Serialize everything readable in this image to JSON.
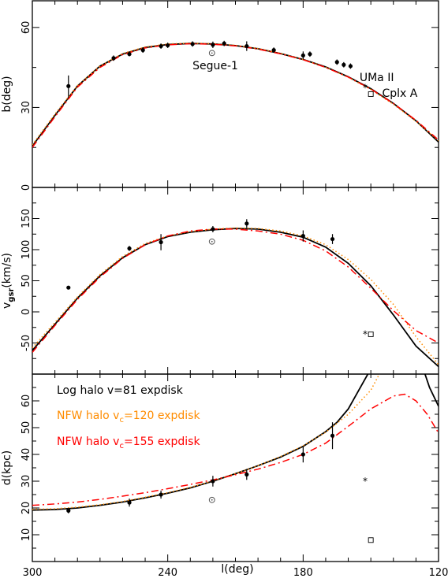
{
  "chart_data": {
    "type": "line",
    "xlabel": "l(deg)",
    "xlim": [
      300,
      120
    ],
    "xticks": [
      300,
      240,
      180,
      120
    ],
    "panels": [
      {
        "id": "b",
        "ylabel": "b(deg)",
        "ylim": [
          0,
          70
        ],
        "yticks": [
          0,
          30,
          60
        ],
        "data_points": [
          {
            "l": 284.0,
            "v": 38.0,
            "err": 4.0
          },
          {
            "l": 264.0,
            "v": 48.5,
            "err": 1.0
          },
          {
            "l": 257.0,
            "v": 50.0,
            "err": 0.8
          },
          {
            "l": 251.0,
            "v": 51.5,
            "err": 1.0
          },
          {
            "l": 243.0,
            "v": 53.0,
            "err": 1.0
          },
          {
            "l": 240.0,
            "v": 53.3,
            "err": 1.0
          },
          {
            "l": 229.0,
            "v": 53.8,
            "err": 1.0
          },
          {
            "l": 220.0,
            "v": 53.5,
            "err": 1.2
          },
          {
            "l": 215.0,
            "v": 54.0,
            "err": 1.0
          },
          {
            "l": 205.0,
            "v": 53.0,
            "err": 1.8
          },
          {
            "l": 193.0,
            "v": 51.5,
            "err": 1.0
          },
          {
            "l": 180.0,
            "v": 49.5,
            "err": 1.5
          },
          {
            "l": 177.0,
            "v": 50.0,
            "err": 1.0
          },
          {
            "l": 165.0,
            "v": 47.0,
            "err": 1.0
          },
          {
            "l": 162.0,
            "v": 46.0,
            "err": 1.0
          },
          {
            "l": 159.0,
            "v": 45.5,
            "err": 1.0
          }
        ],
        "markers": [
          {
            "name": "Segue-1",
            "symbol": "dot-circle",
            "l": 220.4,
            "v": 50.4
          },
          {
            "name": "UMa II",
            "symbol": "asterisk",
            "l": 152.5,
            "v": 37.4
          },
          {
            "name": "Cplx A",
            "symbol": "square",
            "l": 150.0,
            "v": 35.0
          }
        ],
        "annotations": [
          {
            "text": "Segue-1",
            "l": 229.0,
            "v": 44.3
          },
          {
            "text": "UMa II",
            "l": 155.0,
            "v": 39.8
          },
          {
            "text": "Cplx A",
            "l": 145.0,
            "v": 34.0
          }
        ]
      },
      {
        "id": "vgsr",
        "ylabel_main": "v",
        "ylabel_sub": "gsr",
        "ylabel_unit": "(km/s)",
        "ylim": [
          -100,
          200
        ],
        "yticks": [
          -50,
          0,
          50,
          100,
          150
        ],
        "data_points": [
          {
            "l": 284.0,
            "v": 39.0,
            "err": 0
          },
          {
            "l": 257.0,
            "v": 102.0,
            "err": 4.0
          },
          {
            "l": 243.0,
            "v": 112.0,
            "err": 13.0
          },
          {
            "l": 220.0,
            "v": 133.0,
            "err": 5.0
          },
          {
            "l": 205.0,
            "v": 142.0,
            "err": 7.0
          },
          {
            "l": 180.0,
            "v": 122.0,
            "err": 9.0
          },
          {
            "l": 167.0,
            "v": 117.0,
            "err": 8.0
          }
        ],
        "markers": [
          {
            "name": "Segue-1",
            "symbol": "dot-circle",
            "l": 220.4,
            "v": 113.0
          },
          {
            "name": "UMa II",
            "symbol": "asterisk",
            "l": 152.5,
            "v": -36.0
          },
          {
            "name": "Cplx A",
            "symbol": "square",
            "l": 150.0,
            "v": -36.0
          }
        ]
      },
      {
        "id": "d",
        "ylabel": "d(kpc)",
        "ylim": [
          0,
          70
        ],
        "yticks": [
          10,
          20,
          30,
          40,
          50,
          60
        ],
        "data_points": [
          {
            "l": 284.0,
            "v": 19.0,
            "err": 1.0
          },
          {
            "l": 257.0,
            "v": 22.0,
            "err": 1.5
          },
          {
            "l": 243.0,
            "v": 25.0,
            "err": 1.5
          },
          {
            "l": 220.0,
            "v": 30.0,
            "err": 2.0
          },
          {
            "l": 205.0,
            "v": 32.5,
            "err": 2.0
          },
          {
            "l": 180.0,
            "v": 40.0,
            "err": 3.0
          },
          {
            "l": 167.0,
            "v": 47.0,
            "err": 5.0
          }
        ],
        "markers": [
          {
            "name": "Segue-1",
            "symbol": "dot-circle",
            "l": 220.4,
            "v": 23.0
          },
          {
            "name": "UMa II",
            "symbol": "asterisk",
            "l": 152.5,
            "v": 30.0
          },
          {
            "name": "Cplx A",
            "symbol": "square",
            "l": 150.0,
            "v": 8.0
          }
        ]
      }
    ],
    "series": [
      {
        "name": "Log halo v=81 expdisk",
        "legend_main": "Log halo v=81 expdisk",
        "legend_sub": "",
        "legend_post": "",
        "color": "#000000",
        "dash": "solid",
        "curves": {
          "b": [
            [
              300,
              15.5
            ],
            [
              290,
              27
            ],
            [
              280,
              38
            ],
            [
              270,
              45.5
            ],
            [
              260,
              50
            ],
            [
              250,
              52.5
            ],
            [
              240,
              53.6
            ],
            [
              230,
              54
            ],
            [
              220,
              53.8
            ],
            [
              210,
              53.2
            ],
            [
              200,
              52
            ],
            [
              190,
              50.2
            ],
            [
              180,
              48
            ],
            [
              170,
              45.2
            ],
            [
              160,
              41.5
            ],
            [
              150,
              37
            ],
            [
              140,
              31.5
            ],
            [
              130,
              25
            ],
            [
              120,
              17
            ]
          ],
          "vgsr": [
            [
              300,
              -62
            ],
            [
              290,
              -20
            ],
            [
              280,
              22
            ],
            [
              270,
              58
            ],
            [
              260,
              87
            ],
            [
              250,
              108
            ],
            [
              240,
              121
            ],
            [
              230,
              128
            ],
            [
              220,
              132
            ],
            [
              210,
              134
            ],
            [
              200,
              133
            ],
            [
              190,
              128
            ],
            [
              180,
              120
            ],
            [
              170,
              104
            ],
            [
              160,
              78
            ],
            [
              150,
              42
            ],
            [
              140,
              -5
            ],
            [
              130,
              -55
            ],
            [
              120,
              -88
            ]
          ],
          "d": [
            [
              300,
              19.2
            ],
            [
              290,
              19.4
            ],
            [
              280,
              20
            ],
            [
              270,
              21
            ],
            [
              260,
              22.2
            ],
            [
              250,
              23.8
            ],
            [
              240,
              25.5
            ],
            [
              230,
              27.5
            ],
            [
              220,
              30
            ],
            [
              210,
              32.8
            ],
            [
              200,
              35.8
            ],
            [
              190,
              39
            ],
            [
              180,
              43
            ],
            [
              170,
              48.5
            ],
            [
              165,
              52
            ],
            [
              160,
              57
            ],
            [
              150,
              72
            ],
            [
              128,
              75
            ],
            [
              124,
              65
            ],
            [
              120,
              58
            ]
          ]
        }
      },
      {
        "name": "NFW halo vc=120 expdisk",
        "legend_main": "NFW halo v",
        "legend_sub": "c",
        "legend_post": "=120 expdisk",
        "color": "#ff8c00",
        "dash": "dot",
        "curves": {
          "b": [
            [
              300,
              16
            ],
            [
              290,
              27.5
            ],
            [
              280,
              38.2
            ],
            [
              270,
              45.5
            ],
            [
              260,
              50.2
            ],
            [
              250,
              52.7
            ],
            [
              240,
              53.8
            ],
            [
              230,
              54.1
            ],
            [
              220,
              53.9
            ],
            [
              210,
              53.3
            ],
            [
              200,
              52.1
            ],
            [
              190,
              50.3
            ],
            [
              180,
              48
            ],
            [
              170,
              45.1
            ],
            [
              160,
              41.3
            ],
            [
              150,
              36.7
            ],
            [
              140,
              31.2
            ],
            [
              130,
              24.8
            ],
            [
              120,
              17.5
            ]
          ],
          "vgsr": [
            [
              300,
              -58
            ],
            [
              290,
              -17
            ],
            [
              280,
              24
            ],
            [
              270,
              60
            ],
            [
              260,
              89
            ],
            [
              250,
              110
            ],
            [
              240,
              122
            ],
            [
              230,
              129
            ],
            [
              220,
              133
            ],
            [
              210,
              135
            ],
            [
              200,
              134
            ],
            [
              190,
              130
            ],
            [
              180,
              122
            ],
            [
              170,
              108
            ],
            [
              160,
              84
            ],
            [
              150,
              52
            ],
            [
              140,
              12
            ],
            [
              130,
              -40
            ],
            [
              120,
              -85
            ]
          ],
          "d": [
            [
              300,
              19.5
            ],
            [
              290,
              19.7
            ],
            [
              280,
              20.3
            ],
            [
              270,
              21.2
            ],
            [
              260,
              22.4
            ],
            [
              250,
              24
            ],
            [
              240,
              25.7
            ],
            [
              230,
              27.7
            ],
            [
              220,
              30.1
            ],
            [
              210,
              32.8
            ],
            [
              200,
              35.8
            ],
            [
              190,
              39.2
            ],
            [
              180,
              43.2
            ],
            [
              170,
              48.3
            ],
            [
              160,
              55
            ],
            [
              150,
              64
            ],
            [
              145,
              72
            ]
          ]
        }
      },
      {
        "name": "NFW halo vc=155 expdisk",
        "legend_main": "NFW halo v",
        "legend_sub": "c",
        "legend_post": "=155 expdisk",
        "color": "#ff0000",
        "dash": "dash-dot",
        "curves": {
          "b": [
            [
              300,
              15
            ],
            [
              290,
              26.5
            ],
            [
              280,
              37.6
            ],
            [
              270,
              45
            ],
            [
              260,
              49.8
            ],
            [
              250,
              52.3
            ],
            [
              240,
              53.5
            ],
            [
              230,
              53.9
            ],
            [
              220,
              53.7
            ],
            [
              210,
              53.1
            ],
            [
              200,
              51.9
            ],
            [
              190,
              50.1
            ],
            [
              180,
              47.9
            ],
            [
              170,
              45
            ],
            [
              160,
              41.4
            ],
            [
              150,
              36.9
            ],
            [
              140,
              31.5
            ],
            [
              130,
              25.2
            ],
            [
              120,
              17.8
            ]
          ],
          "vgsr": [
            [
              300,
              -65
            ],
            [
              290,
              -22
            ],
            [
              280,
              20
            ],
            [
              270,
              56
            ],
            [
              260,
              86
            ],
            [
              250,
              108
            ],
            [
              240,
              122
            ],
            [
              230,
              130
            ],
            [
              220,
              133
            ],
            [
              210,
              133
            ],
            [
              200,
              130
            ],
            [
              190,
              125
            ],
            [
              180,
              115
            ],
            [
              170,
              98
            ],
            [
              160,
              72
            ],
            [
              150,
              38
            ],
            [
              140,
              2
            ],
            [
              130,
              -30
            ],
            [
              120,
              -50
            ]
          ],
          "d": [
            [
              300,
              21
            ],
            [
              290,
              21.5
            ],
            [
              280,
              22.2
            ],
            [
              270,
              23.2
            ],
            [
              260,
              24.4
            ],
            [
              250,
              25.7
            ],
            [
              240,
              27.2
            ],
            [
              230,
              28.8
            ],
            [
              220,
              30.5
            ],
            [
              210,
              32.4
            ],
            [
              200,
              34.5
            ],
            [
              190,
              37
            ],
            [
              180,
              40
            ],
            [
              170,
              44.2
            ],
            [
              160,
              50.5
            ],
            [
              150,
              57
            ],
            [
              140,
              61.8
            ],
            [
              135,
              62.5
            ],
            [
              130,
              60
            ],
            [
              125,
              55
            ],
            [
              120,
              48
            ]
          ]
        }
      }
    ]
  }
}
